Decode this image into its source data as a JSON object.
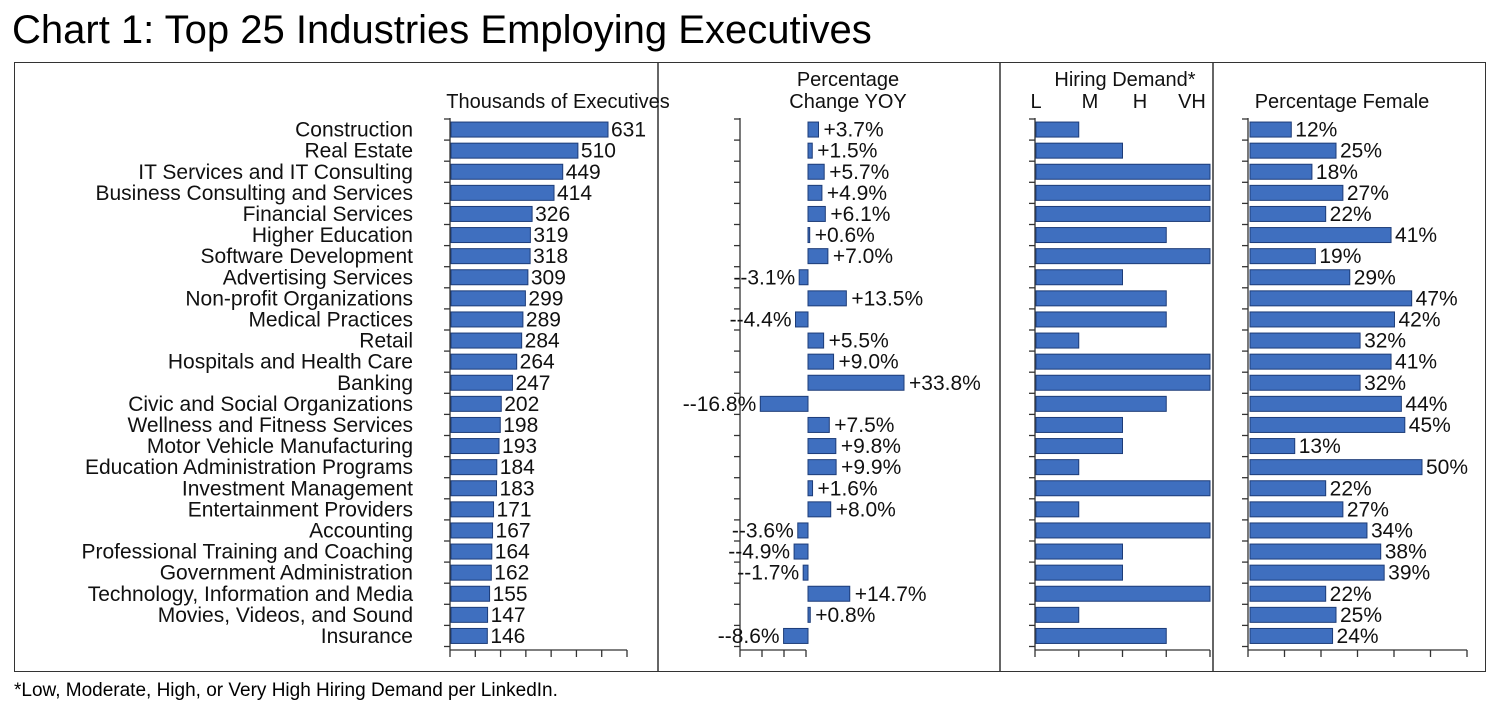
{
  "title": "Chart 1: Top 25 Industries Employing Executives",
  "footnote": "*Low, Moderate, High, or Very High Hiring Demand per LinkedIn.",
  "colors": {
    "bar": "#3f6fbf",
    "bar_stroke": "#1d3c78"
  },
  "chart_data": {
    "type": "bar",
    "orientation": "horizontal",
    "categories": [
      "Construction",
      "Real Estate",
      "IT Services and IT Consulting",
      "Business Consulting and Services",
      "Financial Services",
      "Higher Education",
      "Software Development",
      "Advertising Services",
      "Non-profit Organizations",
      "Medical Practices",
      "Retail",
      "Hospitals and Health Care",
      "Banking",
      "Civic and Social Organizations",
      "Wellness and Fitness Services",
      "Motor Vehicle Manufacturing",
      "Education Administration Programs",
      "Investment Management",
      "Entertainment Providers",
      "Accounting",
      "Professional Training and Coaching",
      "Government Administration",
      "Technology, Information and Media",
      "Movies, Videos, and Sound",
      "Insurance"
    ],
    "panels": [
      {
        "name": "executives",
        "header": [
          "Thousands of Executives"
        ],
        "values": [
          631,
          510,
          449,
          414,
          326,
          319,
          318,
          309,
          299,
          289,
          284,
          264,
          247,
          202,
          198,
          193,
          184,
          183,
          171,
          167,
          164,
          162,
          155,
          147,
          146
        ],
        "labels": [
          "631",
          "510",
          "449",
          "414",
          "326",
          "319",
          "318",
          "309",
          "299",
          "289",
          "284",
          "264",
          "247",
          "202",
          "198",
          "193",
          "184",
          "183",
          "171",
          "167",
          "164",
          "162",
          "155",
          "147",
          "146"
        ],
        "xlim": [
          0,
          700
        ]
      },
      {
        "name": "yoy_change",
        "header": [
          "Percentage",
          "Change YOY"
        ],
        "values": [
          3.7,
          1.5,
          5.7,
          4.9,
          6.1,
          0.6,
          7.0,
          -3.1,
          13.5,
          -4.4,
          5.5,
          9.0,
          33.8,
          -16.8,
          7.5,
          9.8,
          9.9,
          1.6,
          8.0,
          -3.6,
          -4.9,
          -1.7,
          14.7,
          0.8,
          -8.6
        ],
        "labels": [
          "+3.7%",
          "+1.5%",
          "+5.7%",
          "+4.9%",
          "+6.1%",
          "+0.6%",
          "+7.0%",
          "--3.1%",
          "+13.5%",
          "--4.4%",
          "+5.5%",
          "+9.0%",
          "+33.8%",
          "--16.8%",
          "+7.5%",
          "+9.8%",
          "+9.9%",
          "+1.6%",
          "+8.0%",
          "--3.6%",
          "--4.9%",
          "--1.7%",
          "+14.7%",
          "+0.8%",
          "--8.6%"
        ],
        "xlim": [
          -25,
          40
        ]
      },
      {
        "name": "hiring_demand",
        "header": [
          "Hiring Demand*"
        ],
        "tick_labels": [
          "L",
          "M",
          "H",
          "VH"
        ],
        "values": [
          1,
          2,
          4,
          4,
          4,
          3,
          4,
          2,
          3,
          3,
          1,
          4,
          4,
          3,
          2,
          2,
          1,
          4,
          1,
          4,
          2,
          2,
          4,
          1,
          3
        ],
        "xlim": [
          0,
          4
        ]
      },
      {
        "name": "percent_female",
        "header": [
          "Percentage Female"
        ],
        "values": [
          12,
          25,
          18,
          27,
          22,
          41,
          19,
          29,
          47,
          42,
          32,
          41,
          32,
          44,
          45,
          13,
          50,
          22,
          27,
          34,
          38,
          39,
          22,
          25,
          24
        ],
        "labels": [
          "12%",
          "25%",
          "18%",
          "27%",
          "22%",
          "41%",
          "19%",
          "29%",
          "47%",
          "42%",
          "32%",
          "41%",
          "32%",
          "44%",
          "45%",
          "13%",
          "50%",
          "22%",
          "27%",
          "34%",
          "38%",
          "39%",
          "22%",
          "25%",
          "24%"
        ],
        "xlim": [
          0,
          60
        ]
      }
    ]
  }
}
